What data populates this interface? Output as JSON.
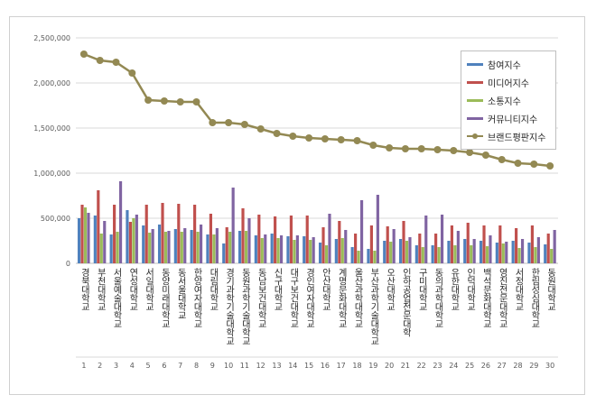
{
  "chart_data": {
    "type": "bar",
    "title": "",
    "xlabel": "",
    "ylabel": "",
    "ylim": [
      0,
      2500000
    ],
    "yticks": [
      "0",
      "500,000",
      "1,000,000",
      "1,500,000",
      "2,000,000",
      "2,500,000"
    ],
    "grid": true,
    "legend_position": "top-right",
    "categories": [
      "경북대학교",
      "부천대학교",
      "서울예술대학교",
      "연성대학교",
      "서일대학교",
      "동양미래대학교",
      "동서울대학교",
      "한양여자대학교",
      "대림대학교",
      "경기과학기술대학교",
      "동원과학기술대학교",
      "동남보건대학교",
      "신구대학교",
      "대구보건대학교",
      "경인여자대학교",
      "안산대학교",
      "계명문화대학교",
      "울산과학대학교",
      "부산과학기술대학교",
      "오산대학교",
      "인하공업전문대학",
      "구미대학교",
      "동의과학대학교",
      "유한대학교",
      "인덕대학교",
      "백석문화대학교",
      "영진전문대학교",
      "서정대학교",
      "한림성심대학교",
      "동원대학교"
    ],
    "ranks": [
      "1",
      "2",
      "3",
      "4",
      "5",
      "6",
      "7",
      "8",
      "9",
      "10",
      "11",
      "12",
      "13",
      "14",
      "15",
      "16",
      "17",
      "18",
      "19",
      "20",
      "21",
      "22",
      "23",
      "24",
      "25",
      "26",
      "27",
      "28",
      "29",
      "30"
    ],
    "series": [
      {
        "name": "참여지수",
        "color": "#4f81bd",
        "kind": "bar",
        "values": [
          500000,
          530000,
          320000,
          590000,
          420000,
          430000,
          380000,
          370000,
          320000,
          220000,
          360000,
          310000,
          330000,
          300000,
          300000,
          230000,
          270000,
          180000,
          160000,
          250000,
          270000,
          200000,
          200000,
          250000,
          270000,
          250000,
          230000,
          250000,
          230000,
          210000
        ]
      },
      {
        "name": "미디어지수",
        "color": "#c0504d",
        "kind": "bar",
        "values": [
          650000,
          810000,
          650000,
          460000,
          650000,
          670000,
          660000,
          650000,
          550000,
          400000,
          610000,
          540000,
          520000,
          530000,
          530000,
          400000,
          470000,
          330000,
          420000,
          410000,
          470000,
          330000,
          330000,
          420000,
          450000,
          420000,
          420000,
          390000,
          420000,
          330000
        ]
      },
      {
        "name": "소통지수",
        "color": "#9bbb59",
        "kind": "bar",
        "values": [
          620000,
          330000,
          350000,
          500000,
          340000,
          350000,
          350000,
          350000,
          320000,
          350000,
          360000,
          280000,
          280000,
          260000,
          260000,
          200000,
          280000,
          140000,
          140000,
          240000,
          250000,
          180000,
          180000,
          200000,
          200000,
          190000,
          220000,
          170000,
          180000,
          160000
        ]
      },
      {
        "name": "커뮤니티지수",
        "color": "#8064a2",
        "kind": "bar",
        "values": [
          560000,
          470000,
          910000,
          540000,
          380000,
          360000,
          390000,
          430000,
          390000,
          840000,
          500000,
          320000,
          310000,
          310000,
          290000,
          550000,
          370000,
          700000,
          760000,
          380000,
          290000,
          530000,
          540000,
          360000,
          270000,
          310000,
          240000,
          270000,
          290000,
          370000
        ]
      },
      {
        "name": "브랜드평판지수",
        "color": "#938953",
        "kind": "line",
        "values": [
          2320000,
          2250000,
          2230000,
          2110000,
          1810000,
          1800000,
          1790000,
          1790000,
          1560000,
          1560000,
          1540000,
          1490000,
          1440000,
          1410000,
          1390000,
          1380000,
          1370000,
          1360000,
          1310000,
          1280000,
          1270000,
          1270000,
          1260000,
          1250000,
          1230000,
          1200000,
          1150000,
          1110000,
          1100000,
          1080000
        ]
      }
    ]
  }
}
